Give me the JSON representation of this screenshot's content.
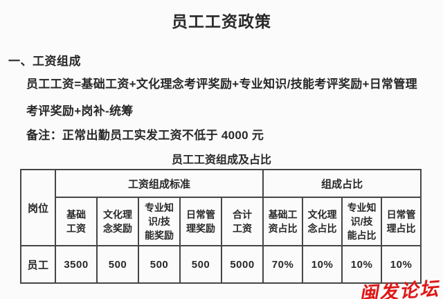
{
  "doc": {
    "title": "员工工资政策",
    "section_heading": "一、工资组成",
    "formula": "员工工资=基础工资+文化理念考评奖励+专业知识/技能考评奖励+日常管理考评奖励+岗补-统筹",
    "note": "备注：正常出勤员工实发工资不低于 4000 元",
    "table_title": "员工工资组成及占比"
  },
  "table": {
    "corner_header": "岗位",
    "group_headers": [
      "工资组成标准",
      "组成占比"
    ],
    "sub_headers": [
      "基础\n工资",
      "文化理\n念奖励",
      "专业知\n识/技\n能奖励",
      "日常管\n理奖励",
      "合计\n工资",
      "基础工\n资占比",
      "文化理\n念占比",
      "专业知\n识/技\n能占比",
      "日常管\n理占比"
    ],
    "rows": [
      [
        "员工",
        "3500",
        "500",
        "500",
        "500",
        "5000",
        "70%",
        "10%",
        "10%",
        "10%"
      ]
    ]
  },
  "watermark": {
    "text": "闽发论坛",
    "color": "#e01717"
  },
  "colors": {
    "text": "#282828",
    "border": "#454545",
    "background": "#fbfbfb"
  }
}
